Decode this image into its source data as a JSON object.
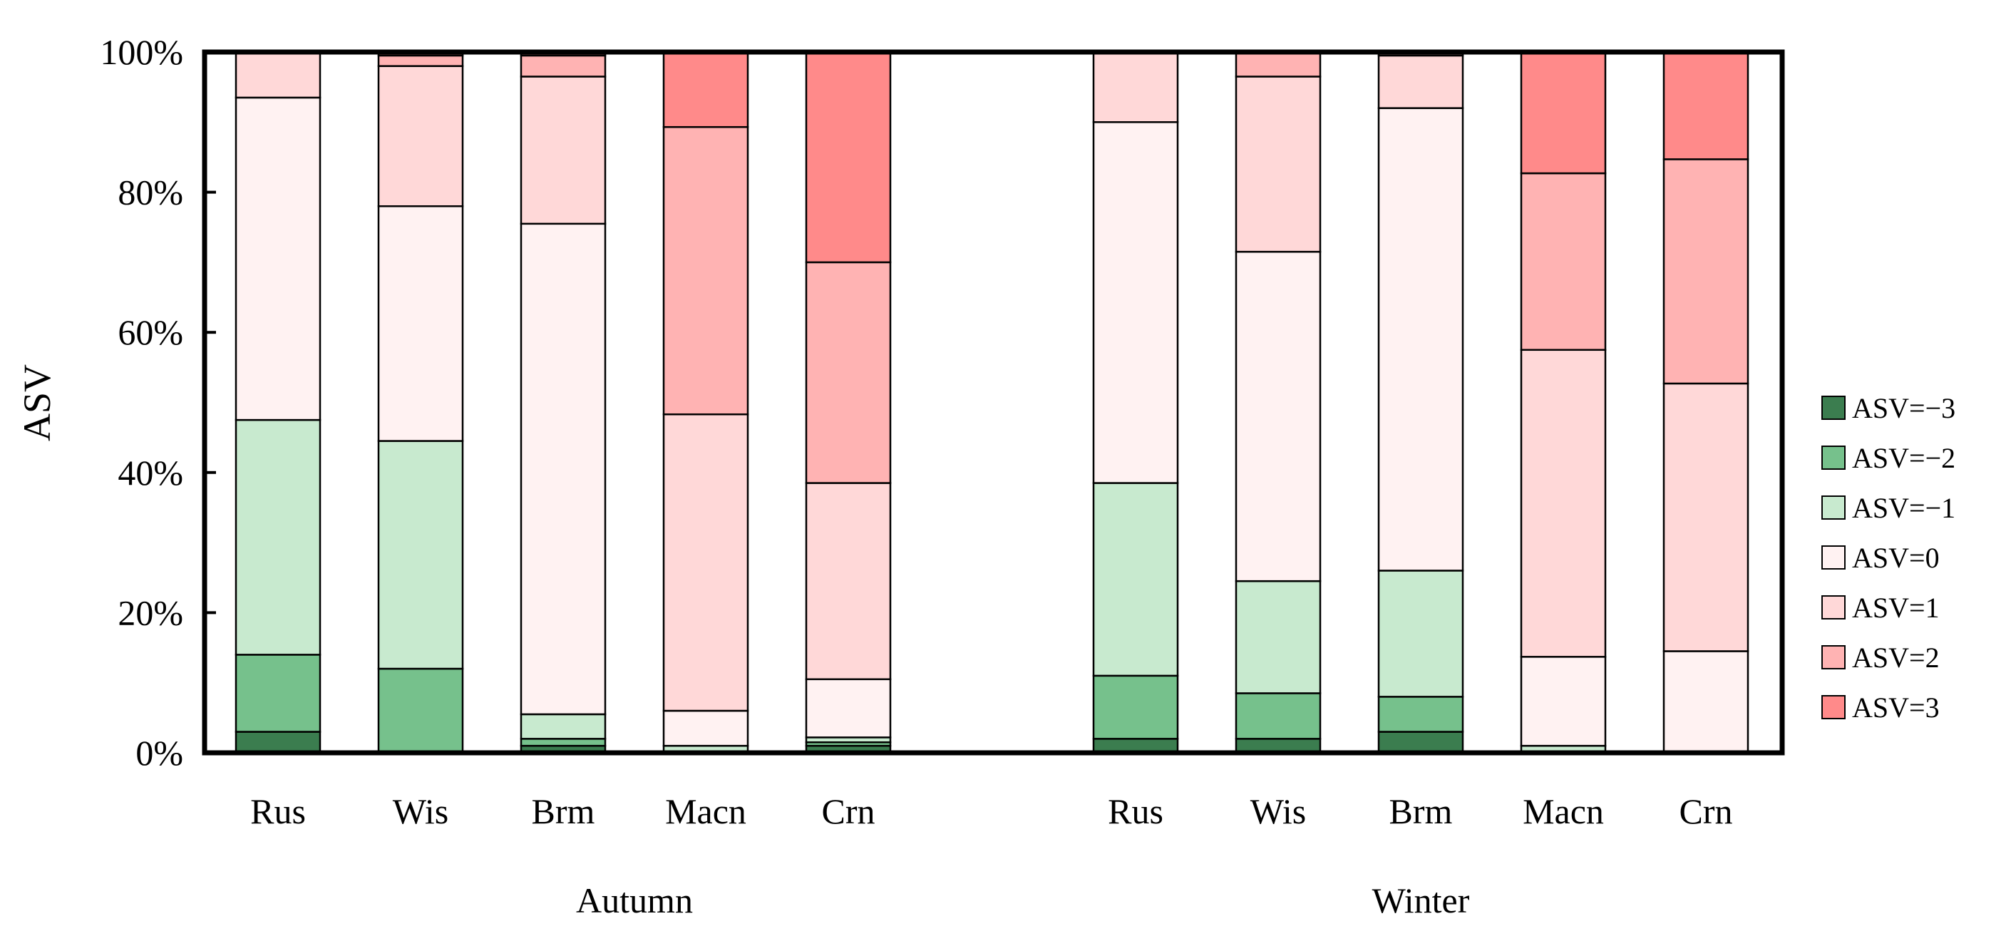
{
  "chart_data": {
    "type": "bar",
    "stacked": true,
    "ylabel": "ASV",
    "ylim": [
      0,
      100
    ],
    "yticks": [
      "0%",
      "20%",
      "40%",
      "60%",
      "80%",
      "100%"
    ],
    "groups": [
      {
        "label": "Autumn",
        "categories": [
          "Rus",
          "Wis",
          "Brm",
          "Macn",
          "Crn"
        ]
      },
      {
        "label": "Winter",
        "categories": [
          "Rus",
          "Wis",
          "Brm",
          "Macn",
          "Crn"
        ]
      }
    ],
    "series": [
      {
        "name": "ASV=−3",
        "color": "#3b7d4f",
        "values": [
          3,
          0,
          1,
          0,
          1,
          2,
          2,
          3,
          0,
          0
        ]
      },
      {
        "name": "ASV=−2",
        "color": "#76c18c",
        "values": [
          11,
          12,
          1,
          0,
          0.5,
          9,
          6.5,
          5,
          0,
          0
        ]
      },
      {
        "name": "ASV=−1",
        "color": "#c8eacf",
        "values": [
          33.5,
          32.5,
          3.5,
          1,
          0.7,
          27.5,
          16,
          18,
          1,
          0
        ]
      },
      {
        "name": "ASV=0",
        "color": "#fff2f2",
        "values": [
          46,
          33.5,
          70,
          5,
          8.3,
          51.5,
          47,
          66,
          12.7,
          14.5
        ]
      },
      {
        "name": "ASV=1",
        "color": "#ffd8d8",
        "values": [
          6.5,
          20,
          21,
          42.3,
          28,
          10,
          25,
          7.5,
          43.8,
          38.2
        ]
      },
      {
        "name": "ASV=2",
        "color": "#ffb3b3",
        "values": [
          0,
          1.5,
          3,
          41,
          31.5,
          0,
          3.5,
          0.5,
          25.2,
          32
        ]
      },
      {
        "name": "ASV=3",
        "color": "#ff8a8a",
        "values": [
          0,
          0.5,
          0.5,
          10.7,
          30,
          0,
          0,
          0,
          17.3,
          15.3
        ]
      }
    ]
  }
}
